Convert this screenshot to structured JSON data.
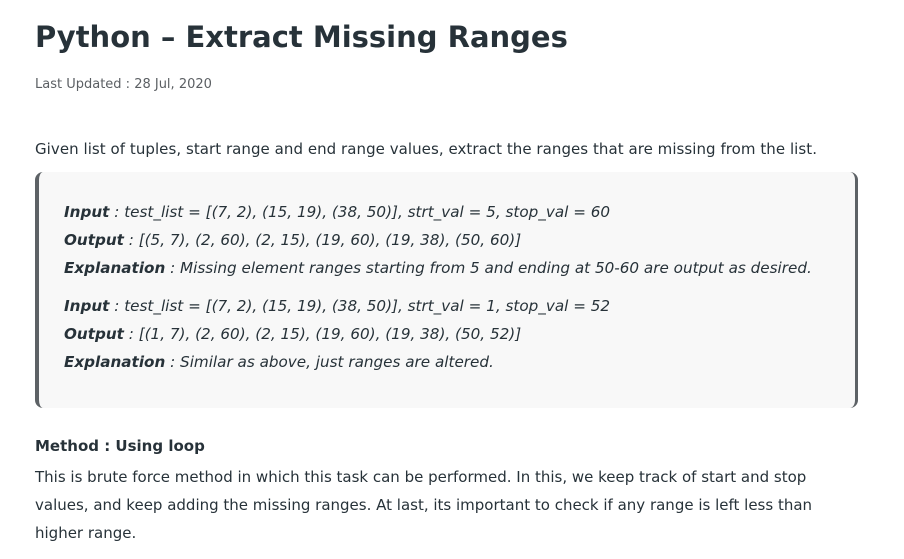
{
  "article": {
    "title": "Python – Extract Missing Ranges",
    "last_updated": "Last Updated : 28 Jul, 2020",
    "intro": "Given list of tuples, start range and end range values, extract the ranges that are missing from the list."
  },
  "examples": [
    {
      "input_label": "Input",
      "input_text": " : test_list = [(7, 2), (15, 19), (38, 50)], strt_val = 5, stop_val = 60",
      "output_label": "Output",
      "output_text": " : [(5, 7), (2, 60), (2, 15), (19, 60), (19, 38), (50, 60)]",
      "explanation_label": "Explanation",
      "explanation_text": " : Missing element ranges starting from 5 and ending at 50-60 are output as desired."
    },
    {
      "input_label": "Input",
      "input_text": " : test_list = [(7, 2), (15, 19), (38, 50)], strt_val = 1, stop_val = 52",
      "output_label": "Output",
      "output_text": " : [(1, 7), (2, 60), (2, 15), (19, 60), (19, 38), (50, 52)]",
      "explanation_label": "Explanation",
      "explanation_text": " : Similar as above, just ranges are altered."
    }
  ],
  "method": {
    "title": "Method : Using loop",
    "lines": [
      "This is brute force method in which this task can be performed. In this, we keep track of start and stop",
      "values, and keep adding the missing ranges. At last, its important to check if any range is left less than",
      "higher range."
    ]
  }
}
